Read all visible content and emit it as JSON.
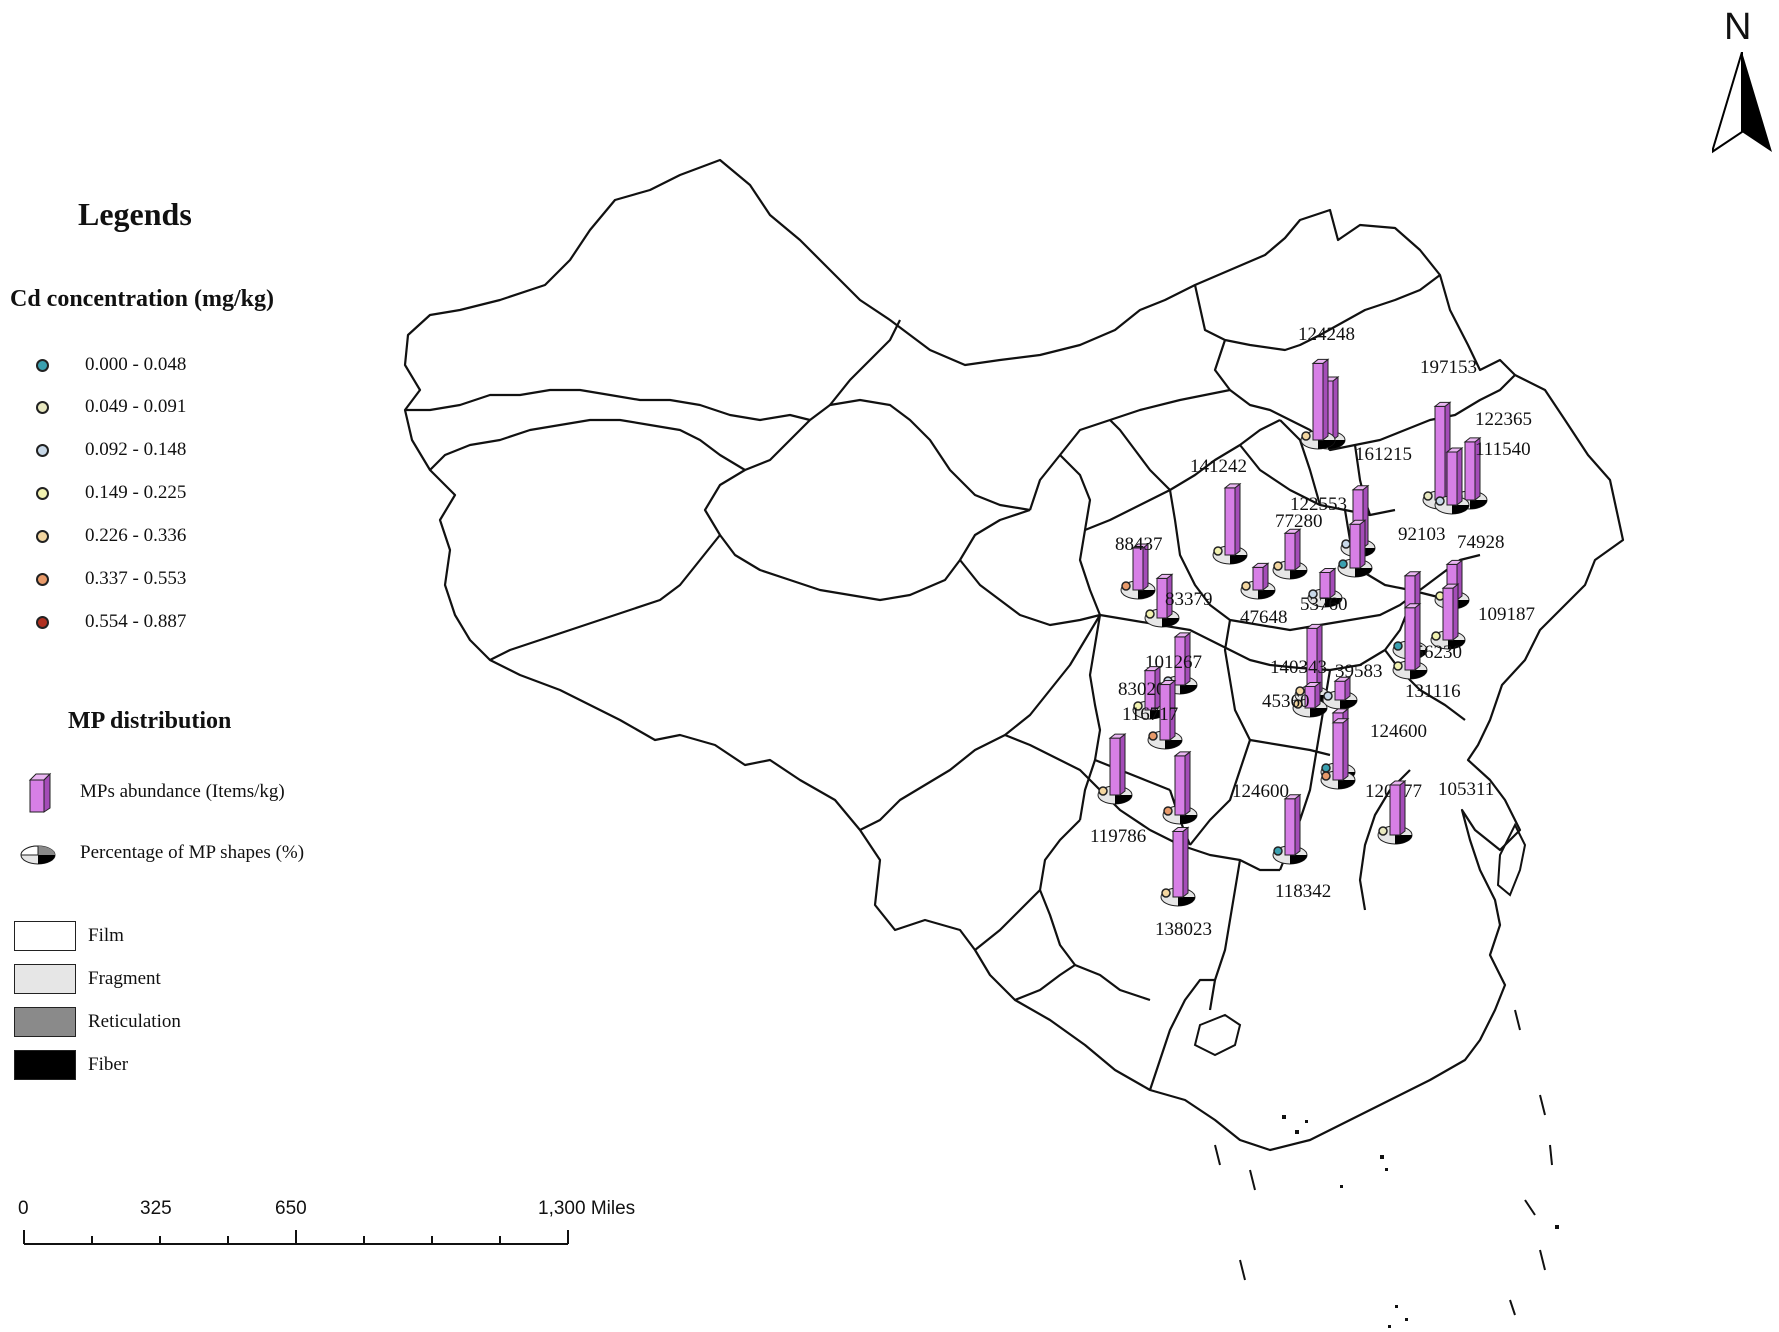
{
  "legend": {
    "title": "Legends",
    "cd_title": "Cd concentration (mg/kg)",
    "cd_classes": [
      {
        "label": "0.000 - 0.048",
        "color": "#3aa0b0"
      },
      {
        "label": "0.049 - 0.091",
        "color": "#e8e8c0"
      },
      {
        "label": "0.092 - 0.148",
        "color": "#c8d8e8"
      },
      {
        "label": "0.149 - 0.225",
        "color": "#f2f2b0"
      },
      {
        "label": "0.226 - 0.336",
        "color": "#f3d6a0"
      },
      {
        "label": "0.337 - 0.553",
        "color": "#e89a6a"
      },
      {
        "label": "0.554 - 0.887",
        "color": "#b03020"
      }
    ],
    "mp_title": "MP distribution",
    "abundance_label": "MPs abundance (Items/kg)",
    "shape_label": "Percentage of MP shapes (%)",
    "shapes": [
      {
        "label": "Film",
        "color": "#ffffff"
      },
      {
        "label": "Fragment",
        "color": "#e6e6e6"
      },
      {
        "label": "Reticulation",
        "color": "#8a8a8a"
      },
      {
        "label": "Fiber",
        "color": "#000000"
      }
    ],
    "bar_color": "#d77fe6"
  },
  "scale_bar": {
    "labels": [
      "0",
      "325",
      "650",
      "1,300 Miles"
    ]
  },
  "north_arrow": {
    "label": "N"
  },
  "sites": [
    {
      "value": "124248",
      "abundance": 124248
    },
    {
      "value": "197153",
      "abundance": 197153
    },
    {
      "value": "122365",
      "abundance": 122365
    },
    {
      "value": "111540",
      "abundance": 111540
    },
    {
      "value": "161215",
      "abundance": 161215
    },
    {
      "value": "141242",
      "abundance": 141242
    },
    {
      "value": "122553",
      "abundance": 122553
    },
    {
      "value": "77280",
      "abundance": 77280
    },
    {
      "value": "92103",
      "abundance": 92103
    },
    {
      "value": "74928",
      "abundance": 74928
    },
    {
      "value": "88437",
      "abundance": 88437
    },
    {
      "value": "47648",
      "abundance": 47648
    },
    {
      "value": "53760",
      "abundance": 53760
    },
    {
      "value": "83379",
      "abundance": 83379
    },
    {
      "value": "109187",
      "abundance": 109187
    },
    {
      "value": "156230",
      "abundance": 156230
    },
    {
      "value": "101267",
      "abundance": 101267
    },
    {
      "value": "140343",
      "abundance": 140343
    },
    {
      "value": "39583",
      "abundance": 39583
    },
    {
      "value": "83020",
      "abundance": 83020
    },
    {
      "value": "131116",
      "abundance": 131116
    },
    {
      "value": "45360",
      "abundance": 45360
    },
    {
      "value": "116717",
      "abundance": 116717
    },
    {
      "value": "124600",
      "abundance": 124600
    },
    {
      "value": "124600",
      "abundance": 124600
    },
    {
      "value": "120577",
      "abundance": 120577
    },
    {
      "value": "105311",
      "abundance": 105311
    },
    {
      "value": "119786",
      "abundance": 119786
    },
    {
      "value": "118342",
      "abundance": 118342
    },
    {
      "value": "138023",
      "abundance": 138023
    }
  ]
}
